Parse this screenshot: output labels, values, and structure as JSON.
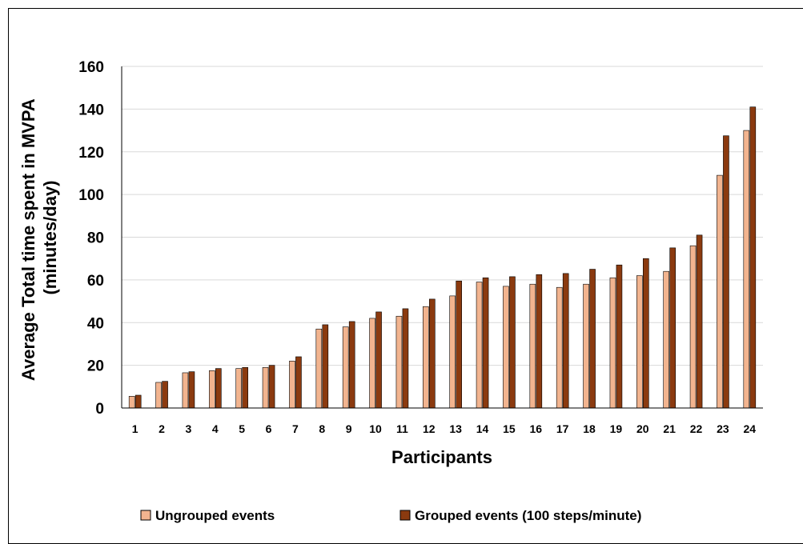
{
  "chart_data": {
    "type": "bar",
    "categories": [
      "1",
      "2",
      "3",
      "4",
      "5",
      "6",
      "7",
      "8",
      "9",
      "10",
      "11",
      "12",
      "13",
      "14",
      "15",
      "16",
      "17",
      "18",
      "19",
      "20",
      "21",
      "22",
      "23",
      "24"
    ],
    "series": [
      {
        "name": "Ungrouped events",
        "color": "#f2b48f",
        "values": [
          5.5,
          12,
          16.5,
          17.5,
          18.5,
          19,
          22,
          37,
          38,
          42,
          43,
          47.5,
          52.5,
          59,
          57,
          58,
          56.5,
          58,
          61,
          62,
          64,
          76,
          109,
          130
        ]
      },
      {
        "name": "Grouped events (100 steps/minute)",
        "color": "#8b3a0f",
        "values": [
          6,
          12.5,
          17,
          18.5,
          19,
          20,
          24,
          39,
          40.5,
          45,
          46.5,
          51,
          59.5,
          61,
          61.5,
          62.5,
          63,
          65,
          67,
          70,
          75,
          81,
          127.5,
          141
        ]
      }
    ],
    "xlabel": "Participants",
    "ylabel_line1": "Average Total time spent in MVPA",
    "ylabel_line2": "(minutes/day)",
    "ylim": [
      0,
      160
    ],
    "yticks": [
      0,
      20,
      40,
      60,
      80,
      100,
      120,
      140,
      160
    ],
    "grid": true,
    "legend_position": "bottom"
  }
}
